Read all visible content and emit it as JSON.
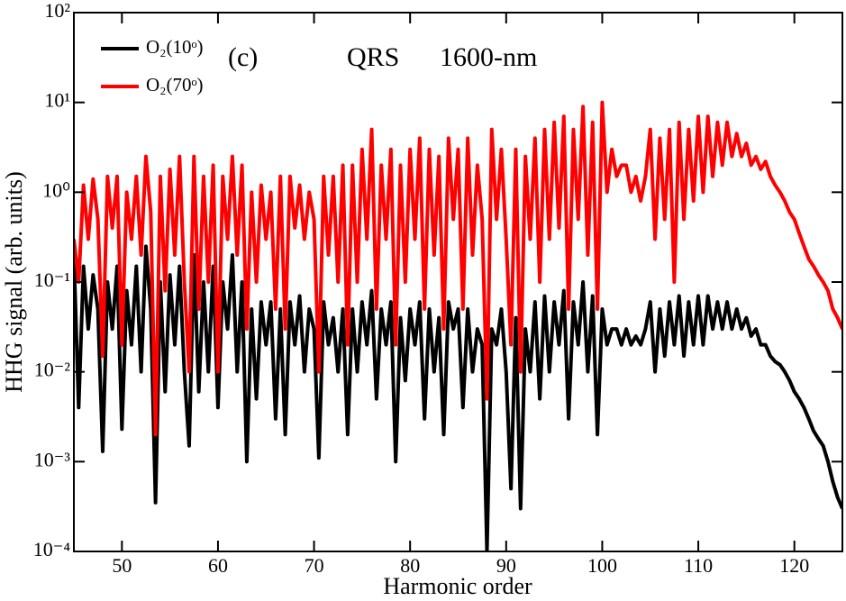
{
  "chart_data": {
    "type": "line",
    "annotations": [
      "(c)",
      "QRS",
      "1600-nm"
    ],
    "x_label": "Harmonic order",
    "y_label": "HHG signal (arb. units)",
    "log_y": true,
    "legend": "upper left",
    "xlim": [
      45,
      125
    ],
    "xticks": [
      50,
      60,
      70,
      80,
      90,
      100,
      110,
      120
    ],
    "ylim": [
      0.0001,
      100
    ],
    "yticks": [
      {
        "value": 0.0001,
        "label": "10⁻⁴"
      },
      {
        "value": 0.001,
        "label": "10⁻³"
      },
      {
        "value": 0.01,
        "label": "10⁻²"
      },
      {
        "value": 0.1,
        "label": "10⁻¹"
      },
      {
        "value": 1,
        "label": "10⁰"
      },
      {
        "value": 10,
        "label": "10¹"
      },
      {
        "value": 100,
        "label": "10²"
      }
    ],
    "x": [
      45,
      45.5,
      46,
      46.5,
      47,
      47.5,
      48,
      48.5,
      49,
      49.5,
      50,
      50.5,
      51,
      51.5,
      52,
      52.5,
      53,
      53.5,
      54,
      54.5,
      55,
      55.5,
      56,
      56.5,
      57,
      57.5,
      58,
      58.5,
      59,
      59.5,
      60,
      60.5,
      61,
      61.5,
      62,
      62.5,
      63,
      63.5,
      64,
      64.5,
      65,
      65.5,
      66,
      66.5,
      67,
      67.5,
      68,
      68.5,
      69,
      69.5,
      70,
      70.5,
      71,
      71.5,
      72,
      72.5,
      73,
      73.5,
      74,
      74.5,
      75,
      75.5,
      76,
      76.5,
      77,
      77.5,
      78,
      78.5,
      79,
      79.5,
      80,
      80.5,
      81,
      81.5,
      82,
      82.5,
      83,
      83.5,
      84,
      84.5,
      85,
      85.5,
      86,
      86.5,
      87,
      87.5,
      88,
      88.5,
      89,
      89.5,
      90,
      90.5,
      91,
      91.5,
      92,
      92.5,
      93,
      93.5,
      94,
      94.5,
      95,
      95.5,
      96,
      96.5,
      97,
      97.5,
      98,
      98.5,
      99,
      99.5,
      100,
      100.5,
      101,
      101.5,
      102,
      102.5,
      103,
      103.5,
      104,
      104.5,
      105,
      105.5,
      106,
      106.5,
      107,
      107.5,
      108,
      108.5,
      109,
      109.5,
      110,
      110.5,
      111,
      111.5,
      112,
      112.5,
      113,
      113.5,
      114,
      114.5,
      115,
      115.5,
      116,
      116.5,
      117,
      117.5,
      118,
      118.5,
      119,
      119.5,
      120,
      120.5,
      121,
      121.5,
      122,
      122.5,
      123,
      123.5,
      124,
      124.5,
      125
    ],
    "series": [
      {
        "name": "O₂(10ᵒ)",
        "color": "#000000",
        "values": [
          0.2,
          0.004,
          0.15,
          0.03,
          0.12,
          0.05,
          0.0013,
          0.1,
          0.03,
          0.15,
          0.0023,
          0.08,
          0.02,
          0.15,
          0.01,
          0.25,
          0.05,
          0.00035,
          0.1,
          0.006,
          0.12,
          0.02,
          0.15,
          0.01,
          0.0015,
          0.2,
          0.006,
          0.1,
          0.01,
          0.15,
          0.004,
          0.1,
          0.03,
          0.2,
          0.01,
          0.1,
          0.001,
          0.05,
          0.005,
          0.06,
          0.02,
          0.06,
          0.003,
          0.05,
          0.002,
          0.06,
          0.02,
          0.07,
          0.01,
          0.05,
          0.03,
          0.0011,
          0.06,
          0.02,
          0.04,
          0.01,
          0.05,
          0.002,
          0.05,
          0.01,
          0.06,
          0.02,
          0.08,
          0.005,
          0.05,
          0.02,
          0.06,
          0.001,
          0.04,
          0.008,
          0.05,
          0.02,
          0.06,
          0.003,
          0.05,
          0.01,
          0.04,
          0.002,
          0.06,
          0.03,
          0.05,
          0.004,
          0.05,
          0.01,
          0.03,
          0.02,
          0.0001,
          0.03,
          0.02,
          0.05,
          0.01,
          0.0005,
          0.04,
          0.0003,
          0.03,
          0.01,
          0.06,
          0.005,
          0.07,
          0.01,
          0.06,
          0.02,
          0.08,
          0.003,
          0.06,
          0.02,
          0.1,
          0.01,
          0.07,
          0.002,
          0.05,
          0.02,
          0.03,
          0.03,
          0.02,
          0.03,
          0.02,
          0.025,
          0.02,
          0.03,
          0.06,
          0.01,
          0.05,
          0.015,
          0.06,
          0.02,
          0.07,
          0.015,
          0.06,
          0.02,
          0.07,
          0.02,
          0.07,
          0.03,
          0.06,
          0.03,
          0.06,
          0.03,
          0.05,
          0.03,
          0.04,
          0.025,
          0.03,
          0.02,
          0.02,
          0.015,
          0.013,
          0.012,
          0.01,
          0.008,
          0.006,
          0.005,
          0.004,
          0.003,
          0.0022,
          0.0018,
          0.0015,
          0.001,
          0.0006,
          0.0004,
          0.0003
        ]
      },
      {
        "name": "O₂(70ᵒ)",
        "color": "#ff0000",
        "values": [
          0.3,
          0.1,
          1.2,
          0.3,
          1.4,
          0.5,
          0.015,
          1.5,
          0.4,
          1.5,
          0.02,
          1.0,
          0.3,
          1.5,
          0.2,
          2.5,
          0.6,
          0.002,
          1.5,
          0.08,
          1.8,
          0.2,
          2.5,
          0.1,
          0.01,
          2.5,
          0.05,
          1.5,
          0.1,
          2.0,
          0.01,
          1.5,
          0.3,
          2.5,
          0.2,
          2.0,
          0.03,
          1.0,
          0.1,
          1.2,
          0.3,
          1.0,
          0.05,
          1.5,
          0.03,
          1.5,
          0.4,
          1.2,
          0.3,
          1.0,
          0.5,
          0.01,
          1.5,
          0.2,
          1.5,
          0.1,
          2.0,
          0.02,
          2.0,
          0.1,
          3.0,
          0.3,
          5.0,
          0.05,
          2.0,
          0.3,
          3.0,
          0.02,
          2.0,
          0.1,
          3.0,
          0.3,
          4.0,
          0.05,
          3.0,
          0.2,
          2.5,
          0.03,
          4.0,
          0.5,
          3.0,
          0.05,
          4.0,
          0.2,
          2.0,
          0.5,
          0.005,
          5.0,
          0.5,
          3.0,
          0.3,
          0.02,
          3.0,
          0.01,
          2.5,
          0.3,
          4.0,
          0.1,
          5.0,
          0.3,
          6.0,
          0.4,
          7.0,
          0.05,
          5.0,
          0.5,
          9.0,
          0.2,
          6.0,
          0.05,
          10.0,
          1.0,
          3.0,
          1.5,
          2.0,
          2.0,
          1.0,
          1.5,
          0.8,
          1.5,
          5.0,
          0.3,
          4.0,
          0.5,
          5.0,
          0.1,
          6.0,
          0.5,
          5.0,
          0.8,
          7.0,
          1.0,
          7.0,
          1.5,
          6.0,
          2.0,
          6.0,
          2.5,
          4.5,
          2.5,
          3.5,
          2.0,
          2.5,
          1.8,
          2.2,
          1.5,
          1.2,
          1.0,
          0.8,
          0.6,
          0.5,
          0.35,
          0.25,
          0.18,
          0.15,
          0.12,
          0.1,
          0.08,
          0.05,
          0.04,
          0.03
        ]
      }
    ]
  }
}
